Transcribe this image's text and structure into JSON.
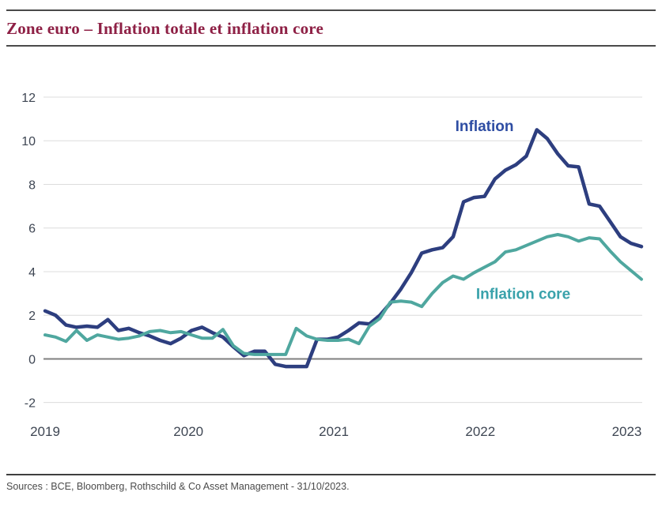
{
  "header": {
    "title": "Zone euro – Inflation totale et inflation core"
  },
  "footer": {
    "sources": "Sources : BCE, Bloomberg, Rothschild & Co Asset Management  - 31/10/2023."
  },
  "colors": {
    "title_text": "#8e2045",
    "divider": "#4a4a4a",
    "grid_line": "#dcdcdc",
    "zero_line": "#7f7f7f",
    "tick_text": "#3e4653",
    "inflation_line": "#2d3e7f",
    "inflation_label": "#2e4da3",
    "core_line": "#4fa79f",
    "core_label": "#3aa2ab"
  },
  "chart_data": {
    "type": "line",
    "title": "Zone euro – Inflation totale et inflation core",
    "xlabel": "",
    "ylabel": "",
    "ylim": [
      -2,
      12
    ],
    "yticks": [
      12,
      10,
      8,
      6,
      4,
      2,
      0,
      -2
    ],
    "grid": "horizontal",
    "legend_position": "inline-labels",
    "x_tick_labels": [
      "2019",
      "2020",
      "2021",
      "2022",
      "2023"
    ],
    "x_tick_positions": [
      0,
      13.7,
      27.6,
      41.6,
      55.6
    ],
    "n_points": 58,
    "x_unit": "monthly index",
    "series": [
      {
        "name": "Inflation",
        "color": "#2d3e7f",
        "values": [
          2.2,
          2.0,
          1.55,
          1.45,
          1.5,
          1.45,
          1.8,
          1.3,
          1.4,
          1.2,
          1.05,
          0.85,
          0.7,
          0.95,
          1.3,
          1.45,
          1.2,
          1.0,
          0.55,
          0.15,
          0.35,
          0.35,
          -0.25,
          -0.35,
          -0.35,
          -0.35,
          0.9,
          0.9,
          1.0,
          1.3,
          1.65,
          1.6,
          2.0,
          2.55,
          3.2,
          3.95,
          4.85,
          5.0,
          5.1,
          5.6,
          7.2,
          7.4,
          7.45,
          8.25,
          8.65,
          8.9,
          9.3,
          10.5,
          10.1,
          9.4,
          8.85,
          8.8,
          7.1,
          7.0,
          6.3,
          5.6,
          5.3,
          5.15
        ]
      },
      {
        "name": "Inflation core",
        "color": "#4fa79f",
        "values": [
          1.1,
          1.0,
          0.8,
          1.3,
          0.85,
          1.1,
          1.0,
          0.9,
          0.95,
          1.05,
          1.25,
          1.3,
          1.2,
          1.25,
          1.1,
          0.95,
          0.95,
          1.35,
          0.6,
          0.25,
          0.2,
          0.2,
          0.2,
          0.2,
          1.4,
          1.05,
          0.9,
          0.85,
          0.85,
          0.9,
          0.7,
          1.5,
          1.85,
          2.6,
          2.65,
          2.6,
          2.4,
          3.0,
          3.5,
          3.8,
          3.65,
          3.95,
          4.2,
          4.45,
          4.9,
          5.0,
          5.2,
          5.4,
          5.6,
          5.7,
          5.6,
          5.4,
          5.55,
          5.5,
          4.95,
          4.45,
          4.05,
          3.65
        ]
      }
    ],
    "annotations": [
      {
        "text": "Inflation",
        "x": 42.0,
        "y": 10.7,
        "color": "#2e4da3"
      },
      {
        "text": "Inflation core",
        "x": 45.7,
        "y": 3.0,
        "color": "#3aa2ab"
      }
    ]
  }
}
